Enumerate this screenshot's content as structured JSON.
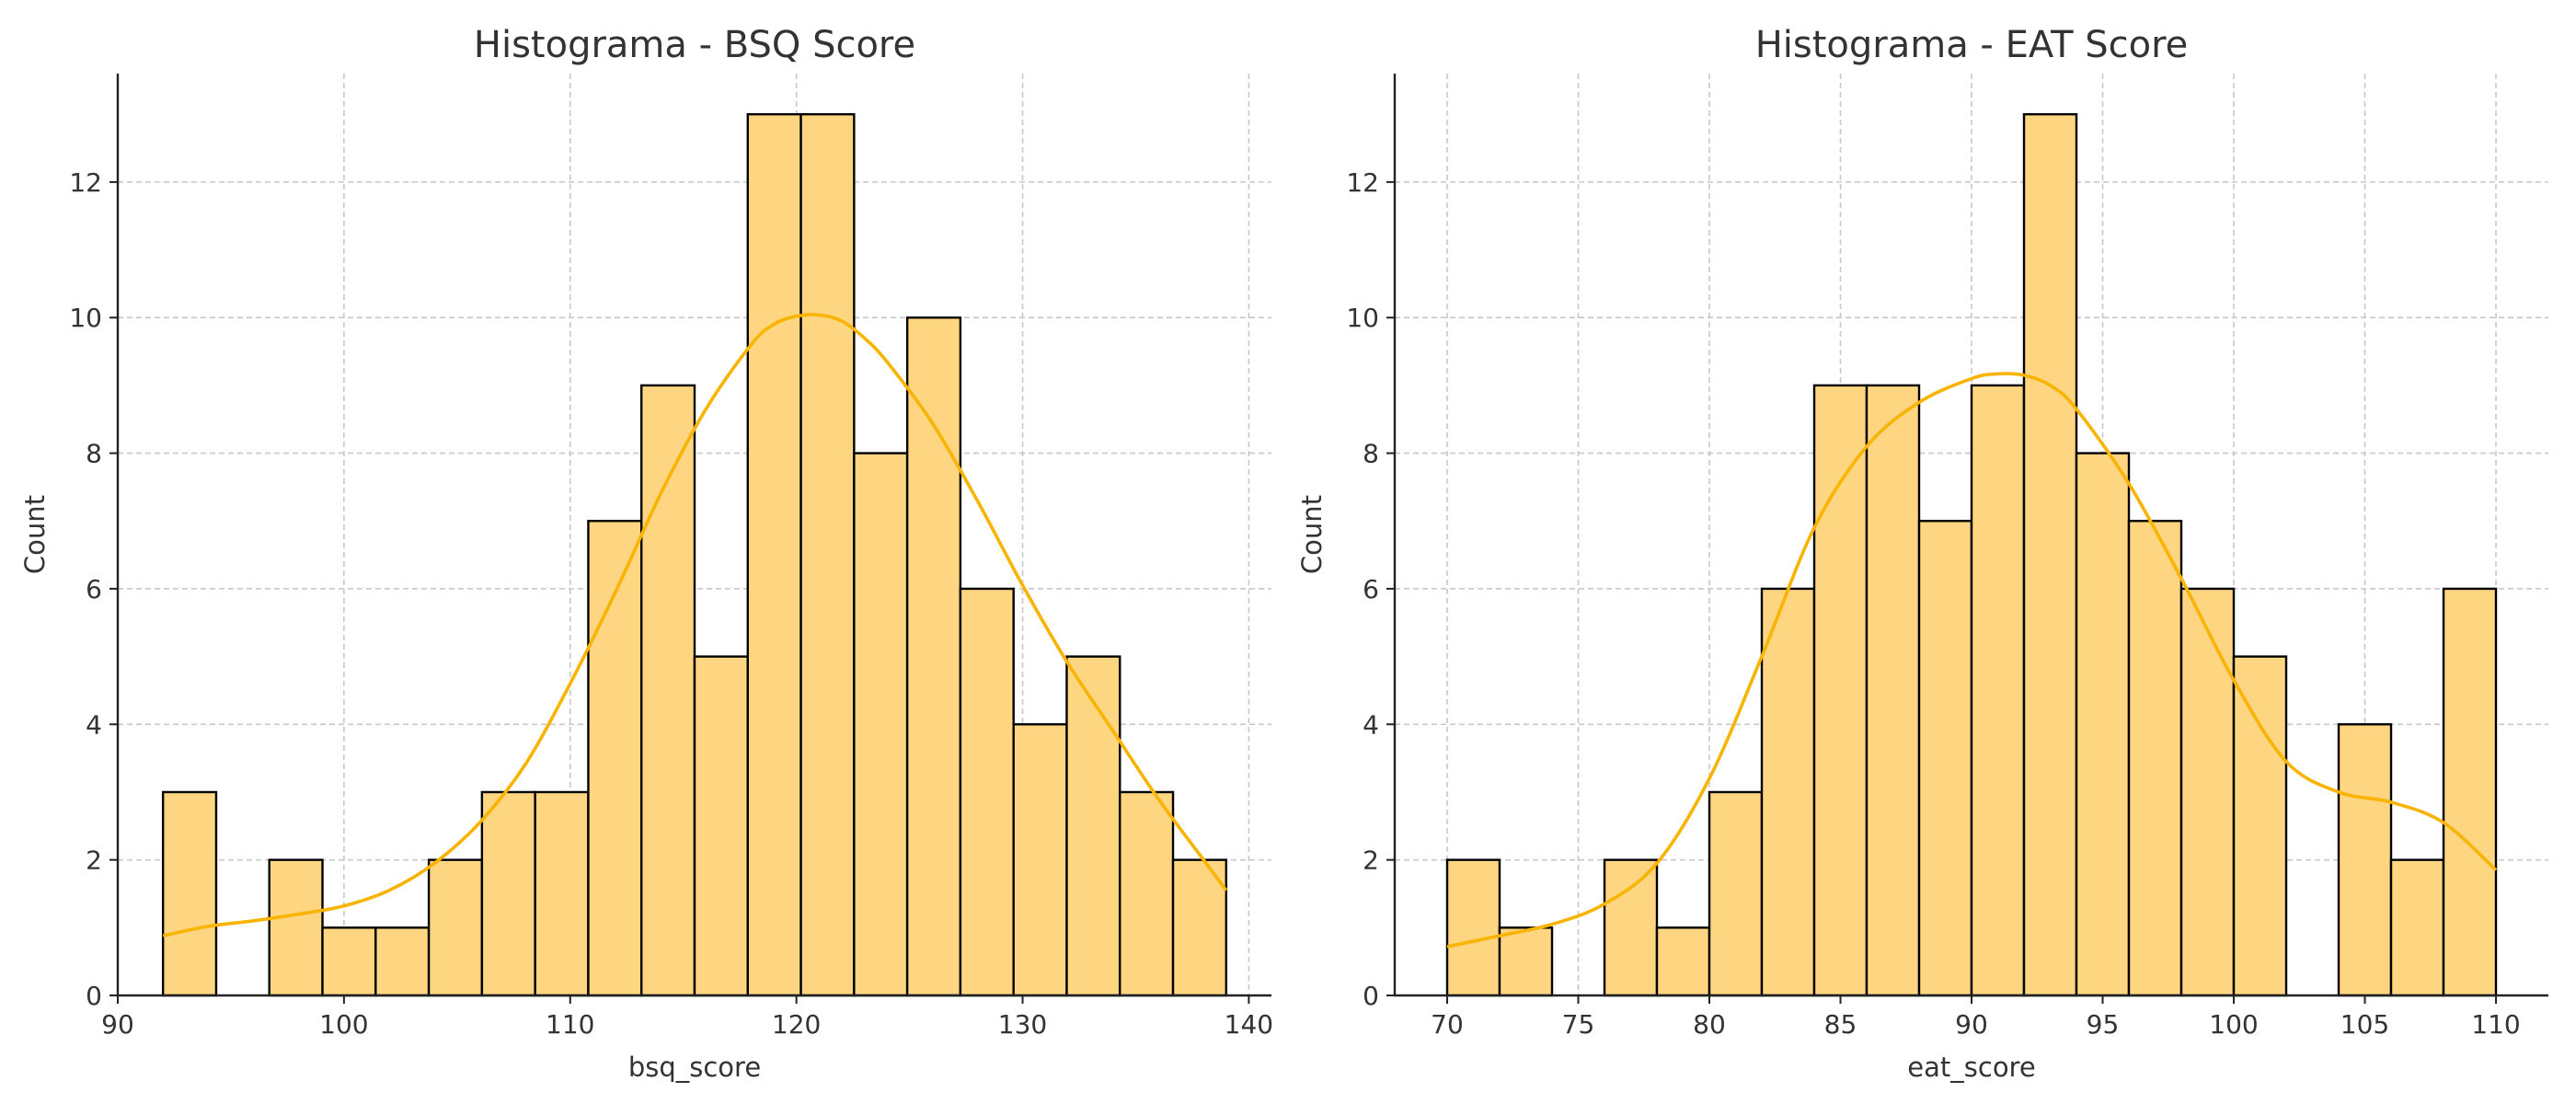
{
  "colors": {
    "bar_fill": "#fed580",
    "bar_edge": "#000000",
    "kde": "#f8b400",
    "grid": "#c8c8c8"
  },
  "chart_data": [
    {
      "type": "bar",
      "subtype": "histogram",
      "title": "Histograma - BSQ Score",
      "xlabel": "bsq_score",
      "ylabel": "Count",
      "xlim": [
        90,
        141
      ],
      "ylim": [
        0,
        13.6
      ],
      "xticks": [
        90,
        100,
        110,
        120,
        130,
        140
      ],
      "yticks": [
        0,
        2,
        4,
        6,
        8,
        10,
        12
      ],
      "grid": true,
      "bins": [
        {
          "start": 92.0,
          "end": 94.35,
          "count": 3
        },
        {
          "start": 94.35,
          "end": 96.7,
          "count": 0
        },
        {
          "start": 96.7,
          "end": 99.05,
          "count": 2
        },
        {
          "start": 99.05,
          "end": 101.4,
          "count": 1
        },
        {
          "start": 101.4,
          "end": 103.75,
          "count": 1
        },
        {
          "start": 103.75,
          "end": 106.1,
          "count": 2
        },
        {
          "start": 106.1,
          "end": 108.45,
          "count": 3
        },
        {
          "start": 108.45,
          "end": 110.8,
          "count": 3
        },
        {
          "start": 110.8,
          "end": 113.15,
          "count": 7
        },
        {
          "start": 113.15,
          "end": 115.5,
          "count": 9
        },
        {
          "start": 115.5,
          "end": 117.85,
          "count": 5
        },
        {
          "start": 117.85,
          "end": 120.2,
          "count": 13
        },
        {
          "start": 120.2,
          "end": 122.55,
          "count": 13
        },
        {
          "start": 122.55,
          "end": 124.9,
          "count": 8
        },
        {
          "start": 124.9,
          "end": 127.25,
          "count": 10
        },
        {
          "start": 127.25,
          "end": 129.6,
          "count": 6
        },
        {
          "start": 129.6,
          "end": 131.95,
          "count": 4
        },
        {
          "start": 131.95,
          "end": 134.3,
          "count": 5
        },
        {
          "start": 134.3,
          "end": 136.65,
          "count": 3
        },
        {
          "start": 136.65,
          "end": 139.0,
          "count": 2
        }
      ],
      "kde": {
        "x": [
          92,
          94,
          96,
          98,
          100,
          102,
          104,
          106,
          108,
          110,
          112,
          114,
          116,
          118,
          119,
          120,
          121,
          122,
          123,
          124,
          126,
          128,
          130,
          132,
          134,
          136,
          138,
          139
        ],
        "y": [
          0.88,
          1.02,
          1.1,
          1.2,
          1.32,
          1.55,
          1.95,
          2.55,
          3.4,
          4.6,
          5.95,
          7.4,
          8.65,
          9.6,
          9.9,
          10.02,
          10.04,
          9.95,
          9.7,
          9.35,
          8.45,
          7.3,
          6.05,
          4.9,
          3.9,
          2.9,
          2.0,
          1.55
        ]
      }
    },
    {
      "type": "bar",
      "subtype": "histogram",
      "title": "Histograma - EAT Score",
      "xlabel": "eat_score",
      "ylabel": "Count",
      "xlim": [
        68,
        112
      ],
      "ylim": [
        0,
        13.6
      ],
      "xticks": [
        70,
        75,
        80,
        85,
        90,
        95,
        100,
        105,
        110
      ],
      "yticks": [
        0,
        2,
        4,
        6,
        8,
        10,
        12
      ],
      "grid": true,
      "bins": [
        {
          "start": 70,
          "end": 72,
          "count": 2
        },
        {
          "start": 72,
          "end": 74,
          "count": 1
        },
        {
          "start": 74,
          "end": 76,
          "count": 0
        },
        {
          "start": 76,
          "end": 78,
          "count": 2
        },
        {
          "start": 78,
          "end": 80,
          "count": 1
        },
        {
          "start": 80,
          "end": 82,
          "count": 3
        },
        {
          "start": 82,
          "end": 84,
          "count": 6
        },
        {
          "start": 84,
          "end": 86,
          "count": 9
        },
        {
          "start": 86,
          "end": 88,
          "count": 9
        },
        {
          "start": 88,
          "end": 90,
          "count": 7
        },
        {
          "start": 90,
          "end": 92,
          "count": 9
        },
        {
          "start": 92,
          "end": 94,
          "count": 13
        },
        {
          "start": 94,
          "end": 96,
          "count": 8
        },
        {
          "start": 96,
          "end": 98,
          "count": 7
        },
        {
          "start": 98,
          "end": 100,
          "count": 6
        },
        {
          "start": 100,
          "end": 102,
          "count": 5
        },
        {
          "start": 102,
          "end": 104,
          "count": 0
        },
        {
          "start": 104,
          "end": 106,
          "count": 4
        },
        {
          "start": 106,
          "end": 108,
          "count": 2
        },
        {
          "start": 108,
          "end": 110,
          "count": 6
        }
      ],
      "kde": {
        "x": [
          70,
          72,
          74,
          76,
          78,
          80,
          82,
          84,
          86,
          88,
          90,
          91,
          92,
          93,
          94,
          96,
          98,
          100,
          102,
          104,
          106,
          108,
          110
        ],
        "y": [
          0.72,
          0.88,
          1.05,
          1.35,
          1.95,
          3.2,
          5.0,
          6.9,
          8.1,
          8.75,
          9.1,
          9.17,
          9.15,
          9.0,
          8.65,
          7.55,
          6.15,
          4.65,
          3.45,
          3.0,
          2.85,
          2.55,
          1.85
        ]
      }
    }
  ]
}
